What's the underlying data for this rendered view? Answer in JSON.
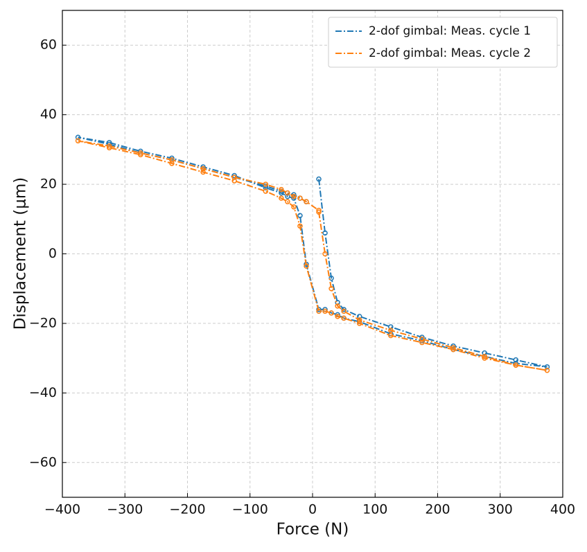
{
  "chart_data": {
    "type": "line",
    "xlabel": "Force (N)",
    "ylabel": "Displacement (μm)",
    "xlim": [
      -400,
      400
    ],
    "ylim": [
      -70,
      70
    ],
    "xticks": [
      {
        "value": -400,
        "label": "−400"
      },
      {
        "value": -300,
        "label": "−300"
      },
      {
        "value": -200,
        "label": "−200"
      },
      {
        "value": -100,
        "label": "−100"
      },
      0,
      100,
      200,
      300,
      400
    ],
    "yticks": [
      {
        "value": -60,
        "label": "−60"
      },
      {
        "value": -40,
        "label": "−40"
      },
      {
        "value": -20,
        "label": "−20"
      },
      0,
      20,
      40,
      60
    ],
    "grid": true,
    "legend": "upper right",
    "series": [
      {
        "name": "2-dof gimbal: Meas. cycle 1",
        "color": "#1f77b4",
        "x": [
          10,
          20,
          30,
          40,
          50,
          75,
          125,
          175,
          225,
          275,
          325,
          375,
          325,
          275,
          225,
          175,
          125,
          75,
          50,
          40,
          30,
          20,
          10,
          -10,
          -20,
          -30,
          -40,
          -50,
          -75,
          -125,
          -175,
          -225,
          -275,
          -325,
          -375,
          -325,
          -275,
          -225,
          -175,
          -125,
          -75,
          -50,
          -40,
          -30,
          -20,
          -10
        ],
        "values": [
          21.5,
          6,
          -7,
          -14,
          -16,
          -18,
          -21,
          -24,
          -26.5,
          -28.5,
          -30.5,
          -32.5,
          -31.5,
          -29.5,
          -27.5,
          -25,
          -23,
          -19.5,
          -18.5,
          -17.5,
          -17,
          -16,
          -16,
          -3,
          11,
          16,
          16.5,
          17.5,
          19,
          22.5,
          25,
          27.5,
          29.5,
          32,
          33.5,
          31.5,
          29,
          27,
          24.5,
          22,
          19.5,
          18,
          17.5,
          17,
          16,
          15
        ]
      },
      {
        "name": "2-dof gimbal: Meas. cycle 2",
        "color": "#ff7f0e",
        "x": [
          10,
          20,
          30,
          40,
          50,
          75,
          125,
          175,
          225,
          275,
          325,
          375,
          325,
          275,
          225,
          175,
          125,
          75,
          50,
          40,
          30,
          20,
          10,
          -10,
          -20,
          -30,
          -40,
          -50,
          -75,
          -125,
          -175,
          -225,
          -275,
          -325,
          -375,
          -325,
          -275,
          -225,
          -175,
          -125,
          -75,
          -50,
          -40,
          -30,
          -20,
          -10,
          10
        ],
        "values": [
          12,
          0,
          -10,
          -15,
          -16.5,
          -19,
          -22,
          -24.5,
          -27,
          -29.5,
          -32,
          -33.5,
          -32,
          -30,
          -27.5,
          -25.5,
          -23.5,
          -20,
          -18.5,
          -18,
          -17,
          -16.5,
          -16.5,
          -3.5,
          8,
          13.5,
          15,
          16,
          18,
          21,
          23.5,
          26,
          28.5,
          30.5,
          32.5,
          31,
          29,
          27,
          24.5,
          22,
          20,
          18.5,
          17.5,
          16.5,
          16,
          15,
          12.5
        ]
      }
    ]
  }
}
